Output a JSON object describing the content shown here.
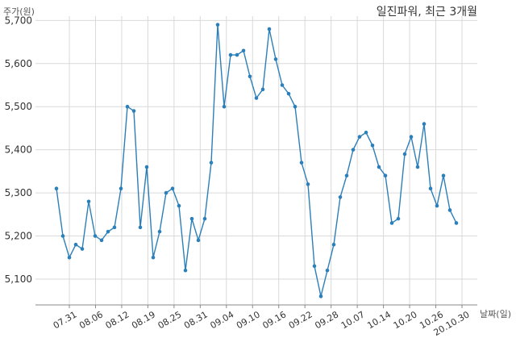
{
  "chart_data": {
    "type": "line",
    "title": "일진파워, 최근 3개월",
    "ylabel": "주가(원)",
    "xlabel": "날짜(일)",
    "ylim": [
      5040,
      5710
    ],
    "yticks": [
      5100,
      5200,
      5300,
      5400,
      5500,
      5600,
      5700
    ],
    "ytick_labels": [
      "5,100",
      "5,200",
      "5,300",
      "5,400",
      "5,500",
      "5,600",
      "5,700"
    ],
    "xtick_labels": [
      "07.31",
      "08.06",
      "08.12",
      "08.19",
      "08.25",
      "08.31",
      "09.04",
      "09.10",
      "09.16",
      "09.22",
      "09.28",
      "10.07",
      "10.14",
      "10.20",
      "10.26",
      "20.10.30"
    ],
    "grid": true,
    "series": [
      {
        "color": "#2c7fb8",
        "values": [
          5310,
          5200,
          5150,
          5180,
          5170,
          5280,
          5200,
          5190,
          5210,
          5220,
          5310,
          5500,
          5490,
          5220,
          5360,
          5150,
          5210,
          5300,
          5310,
          5270,
          5120,
          5240,
          5190,
          5240,
          5370,
          5690,
          5500,
          5620,
          5620,
          5630,
          5570,
          5520,
          5540,
          5680,
          5610,
          5550,
          5530,
          5500,
          5370,
          5320,
          5130,
          5060,
          5120,
          5180,
          5290,
          5340,
          5400,
          5430,
          5440,
          5410,
          5360,
          5340,
          5230,
          5240,
          5390,
          5430,
          5360,
          5460,
          5310,
          5270,
          5340,
          5260,
          5230
        ]
      }
    ]
  }
}
